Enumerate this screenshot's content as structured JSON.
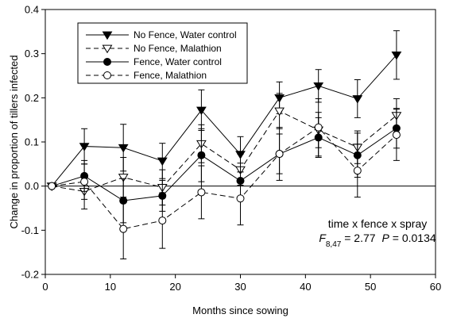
{
  "chart_data": {
    "type": "line",
    "xlabel": "Months since sowing",
    "ylabel": "Change in proportion of tillers infected",
    "xlim": [
      0,
      60
    ],
    "ylim": [
      -0.2,
      0.4
    ],
    "xticks": [
      0,
      10,
      20,
      30,
      40,
      50,
      60
    ],
    "yticks": [
      -0.2,
      -0.1,
      0.0,
      0.1,
      0.2,
      0.3,
      0.4
    ],
    "xtick_labels": [
      "0",
      "10",
      "20",
      "30",
      "40",
      "50",
      "60"
    ],
    "ytick_labels": [
      "-0.2",
      "-0.1",
      "0.0",
      "0.1",
      "0.2",
      "0.3",
      "0.4"
    ],
    "grid": false,
    "reference_line_y": 0,
    "legend_position": "top-left",
    "x": [
      1,
      6,
      12,
      18,
      24,
      30,
      36,
      42,
      48,
      54
    ],
    "series": [
      {
        "name": "No Fence, Water control",
        "marker": "filled-down-triangle",
        "line": "solid",
        "values": [
          0.0,
          0.09,
          0.087,
          0.057,
          0.172,
          0.072,
          0.2,
          0.227,
          0.198,
          0.297
        ],
        "errors": [
          0.0,
          0.04,
          0.053,
          0.04,
          0.046,
          0.04,
          0.036,
          0.037,
          0.043,
          0.055
        ]
      },
      {
        "name": "No Fence, Malathion",
        "marker": "open-down-triangle",
        "line": "dashed",
        "values": [
          0.0,
          -0.012,
          0.02,
          -0.003,
          0.096,
          0.037,
          0.17,
          0.127,
          0.088,
          0.16
        ],
        "errors": [
          0.0,
          0.04,
          0.045,
          0.04,
          0.043,
          0.035,
          0.04,
          0.04,
          0.037,
          0.038
        ]
      },
      {
        "name": "Fence, Water control",
        "marker": "filled-circle",
        "line": "solid",
        "values": [
          0.0,
          0.023,
          -0.033,
          -0.022,
          0.07,
          0.012,
          0.073,
          0.11,
          0.07,
          0.131
        ],
        "errors": [
          0.0,
          0.035,
          0.05,
          0.035,
          0.06,
          0.04,
          0.045,
          0.045,
          0.05,
          0.045
        ]
      },
      {
        "name": "Fence, Malathion",
        "marker": "open-circle",
        "line": "dashed",
        "values": [
          0.0,
          0.01,
          -0.097,
          -0.078,
          -0.014,
          -0.028,
          0.073,
          0.133,
          0.035,
          0.116
        ],
        "errors": [
          0.0,
          0.04,
          0.068,
          0.063,
          0.06,
          0.06,
          0.06,
          0.065,
          0.06,
          0.058
        ]
      }
    ],
    "annotation": {
      "line1": "time x fence x spray",
      "f_symbol": "F",
      "f_subscript": "8,47",
      "f_value": " = 2.77",
      "p_symbol": "P",
      "p_value": " = 0.0134"
    }
  }
}
